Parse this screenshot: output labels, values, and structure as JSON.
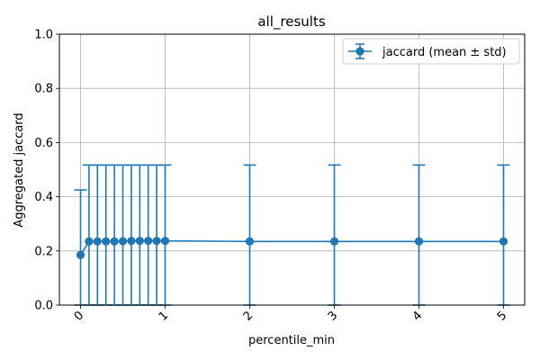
{
  "chart_data": {
    "type": "line",
    "title": "all_results",
    "xlabel": "percentile_min",
    "ylabel": "Aggregated jaccard",
    "xlim": [
      -0.25,
      5.25
    ],
    "ylim": [
      0.0,
      1.0
    ],
    "x_ticks": [
      0,
      1,
      2,
      3,
      4,
      5
    ],
    "x_tick_labels": [
      "0",
      "1",
      "2",
      "3",
      "4",
      "5"
    ],
    "y_ticks": [
      0.0,
      0.2,
      0.4,
      0.6,
      0.8,
      1.0
    ],
    "y_tick_labels": [
      "0.0",
      "0.2",
      "0.4",
      "0.6",
      "0.8",
      "1.0"
    ],
    "grid": true,
    "legend_position": "top-right",
    "series": [
      {
        "name": "jaccard (mean ± std)",
        "color": "#1f77b4",
        "x": [
          0,
          0.1,
          0.2,
          0.3,
          0.4,
          0.5,
          0.6,
          0.7,
          0.8,
          0.9,
          1,
          2,
          3,
          4,
          5
        ],
        "y": [
          0.185,
          0.235,
          0.235,
          0.235,
          0.235,
          0.236,
          0.237,
          0.237,
          0.237,
          0.237,
          0.237,
          0.235,
          0.235,
          0.235,
          0.235
        ],
        "yerr_upper": [
          0.425,
          0.517,
          0.517,
          0.517,
          0.517,
          0.517,
          0.517,
          0.517,
          0.517,
          0.517,
          0.517,
          0.517,
          0.517,
          0.517,
          0.517
        ],
        "yerr_lower": [
          0.0,
          0.0,
          0.0,
          0.0,
          0.0,
          0.0,
          0.0,
          0.0,
          0.0,
          0.0,
          0.0,
          0.0,
          0.0,
          0.0,
          0.0
        ]
      }
    ]
  }
}
